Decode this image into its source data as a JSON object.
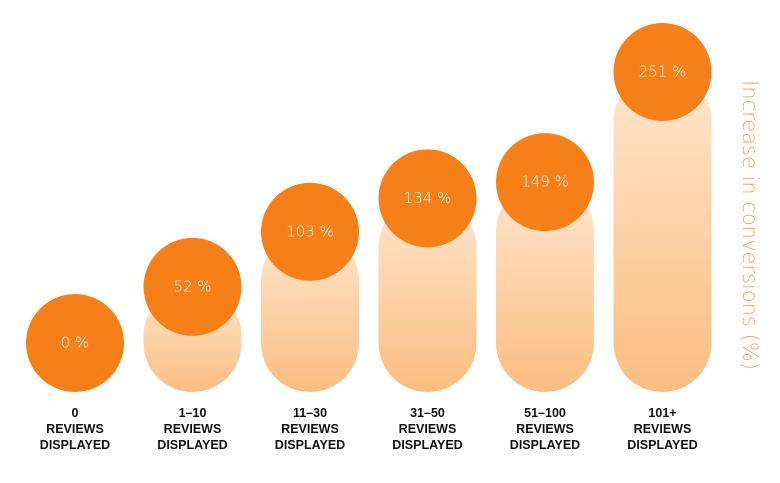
{
  "chart_data": {
    "type": "bar",
    "y_axis_label": "Increase in conversions (%)",
    "categories": [
      "0\nREVIEWS\nDISPLAYED",
      "1–10\nREVIEWS\nDISPLAYED",
      "11–30\nREVIEWS\nDISPLAYED",
      "31–50\nREVIEWS\nDISPLAYED",
      "51–100\nREVIEWS\nDISPLAYED",
      "101+\nREVIEWS\nDISPLAYED"
    ],
    "values": [
      0,
      52,
      103,
      134,
      149,
      251
    ],
    "value_labels": [
      "0 %",
      "52 %",
      "103 %",
      "134 %",
      "149 %",
      "251 %"
    ],
    "color": "#f77f17"
  }
}
